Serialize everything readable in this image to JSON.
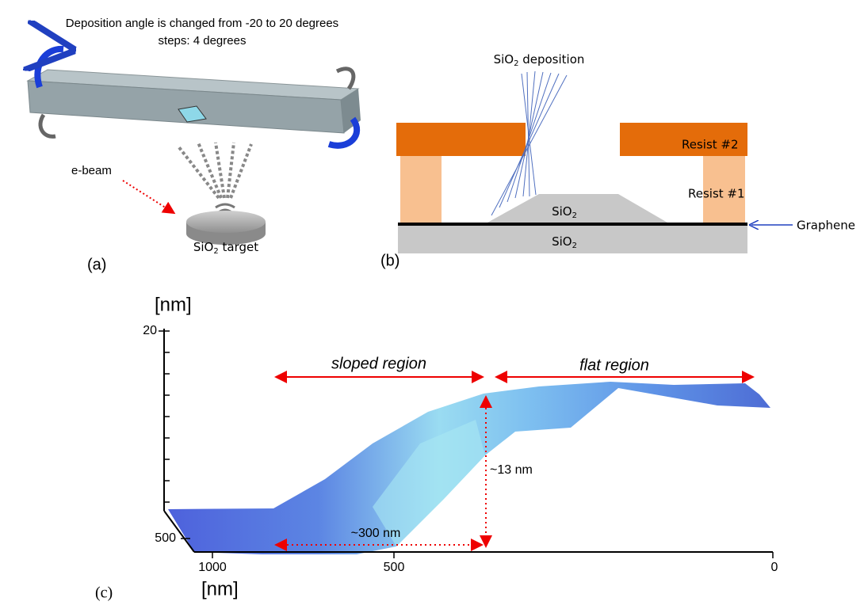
{
  "panel_a": {
    "title": "Deposition angle is changed from -20 to 20 degrees",
    "subtitle": "steps: 4 degrees",
    "beam_label": "e-beam",
    "target_label": {
      "base": "SiO",
      "sub": "2",
      "rest": " target"
    },
    "panel_label": "(a)"
  },
  "panel_b": {
    "deposition_label": {
      "base": "SiO",
      "sub": "2",
      "rest": " deposition"
    },
    "resist_2": "Resist #2",
    "resist_1": "Resist #1",
    "deposited_layer": {
      "base": "SiO",
      "sub": "2"
    },
    "substrate": {
      "base": "SiO",
      "sub": "2"
    },
    "graphene": "Graphene",
    "panel_label": "(b)"
  },
  "panel_c": {
    "z_unit": "[nm]",
    "z_tick": "20",
    "y_tick": "500",
    "x_ticks": [
      "1000",
      "500",
      "0"
    ],
    "x_unit": "[nm]",
    "sloped_region": "sloped region",
    "flat_region": "flat region",
    "height_annotation": "~13 nm",
    "width_annotation": "~300 nm",
    "panel_label": "(c)"
  }
}
